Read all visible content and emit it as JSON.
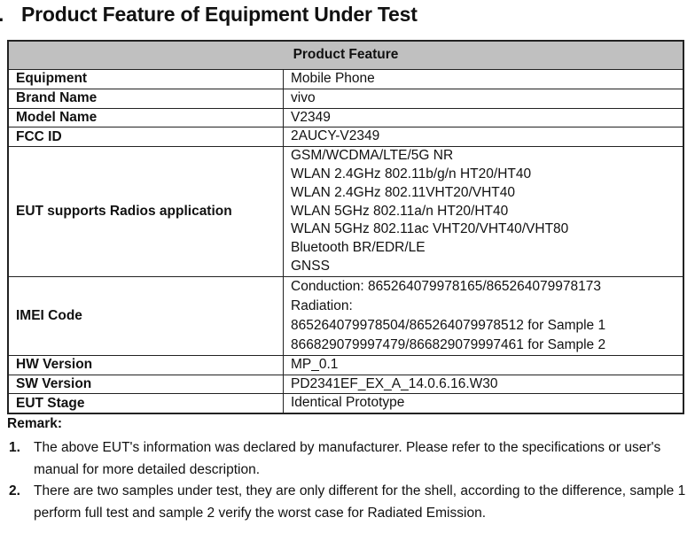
{
  "section": {
    "number": ".",
    "title": "Product Feature of Equipment Under Test"
  },
  "table": {
    "header": "Product Feature",
    "rows": [
      {
        "label": "Equipment",
        "values": [
          "Mobile Phone"
        ]
      },
      {
        "label": "Brand Name",
        "values": [
          "vivo"
        ]
      },
      {
        "label": "Model Name",
        "values": [
          "V2349"
        ]
      },
      {
        "label": "FCC ID",
        "values": [
          "2AUCY-V2349"
        ]
      },
      {
        "label": "EUT supports Radios application",
        "values": [
          "GSM/WCDMA/LTE/5G NR",
          "WLAN 2.4GHz 802.11b/g/n HT20/HT40",
          "WLAN 2.4GHz 802.11VHT20/VHT40",
          "WLAN 5GHz 802.11a/n HT20/HT40",
          "WLAN 5GHz 802.11ac VHT20/VHT40/VHT80",
          "Bluetooth BR/EDR/LE",
          "GNSS"
        ]
      },
      {
        "label": "IMEI Code",
        "values": [
          "Conduction: 865264079978165/865264079978173",
          "Radiation:",
          "865264079978504/865264079978512 for Sample 1",
          "866829079997479/866829079997461 for Sample 2"
        ]
      },
      {
        "label": "HW Version",
        "values": [
          "MP_0.1"
        ]
      },
      {
        "label": "SW Version",
        "values": [
          "PD2341EF_EX_A_14.0.6.16.W30"
        ]
      },
      {
        "label": "EUT Stage",
        "values": [
          "Identical Prototype"
        ]
      }
    ]
  },
  "remark": {
    "label": "Remark:",
    "items": [
      {
        "num": "1.",
        "text": "The above EUT's information was declared by manufacturer. Please refer to the specifications or user's manual for more detailed description."
      },
      {
        "num": "2.",
        "text": "There are two samples under test, they are only different for the shell, according to the difference, sample 1 perform full test and sample 2 verify the worst case for Radiated Emission."
      }
    ]
  }
}
